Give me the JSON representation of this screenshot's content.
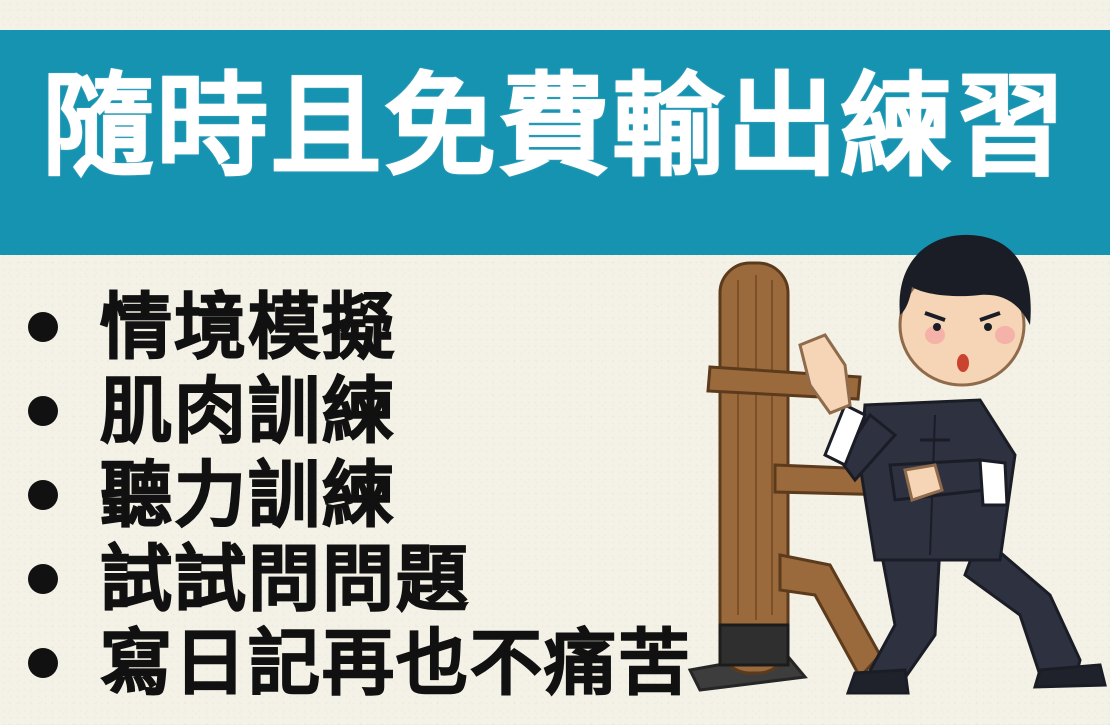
{
  "title": "隨時且免費輸出練習",
  "items": [
    "情境模擬",
    "肌肉訓練",
    "聽力訓練",
    "試試問問題",
    "寫日記再也不痛苦"
  ],
  "colors": {
    "banner": "#1693b0",
    "background": "#f4f1e6",
    "title_text": "#ffffff",
    "bullet_text": "#111111"
  },
  "illustration": {
    "icon": "kung-fu-wooden-dummy-training-illustration"
  }
}
